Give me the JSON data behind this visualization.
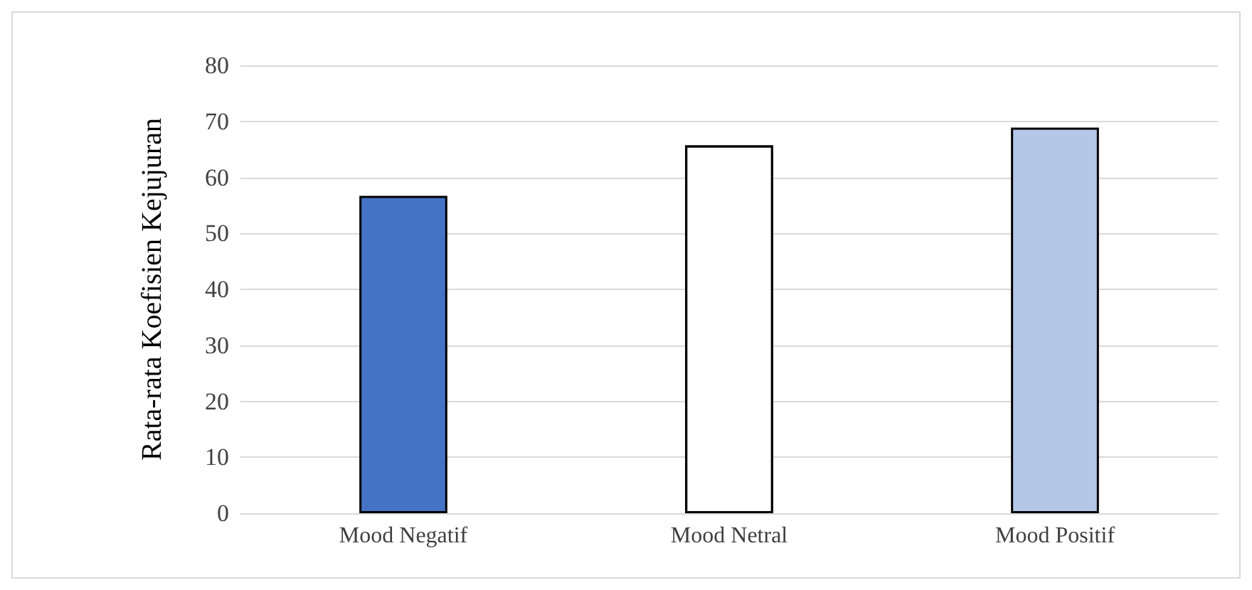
{
  "chart_data": {
    "type": "bar",
    "ylabel": "Rata-rata Koefisien Kejujuran",
    "categories": [
      "Mood Negatif",
      "Mood Netral",
      "Mood Positif"
    ],
    "values": [
      56.7,
      65.7,
      68.9
    ],
    "colors": [
      "#4472c4",
      "#ffffff",
      "#b4c7e7"
    ],
    "ylim": [
      0,
      80
    ],
    "yticks": [
      0,
      10,
      20,
      30,
      40,
      50,
      60,
      70,
      80
    ],
    "grid": "y"
  }
}
